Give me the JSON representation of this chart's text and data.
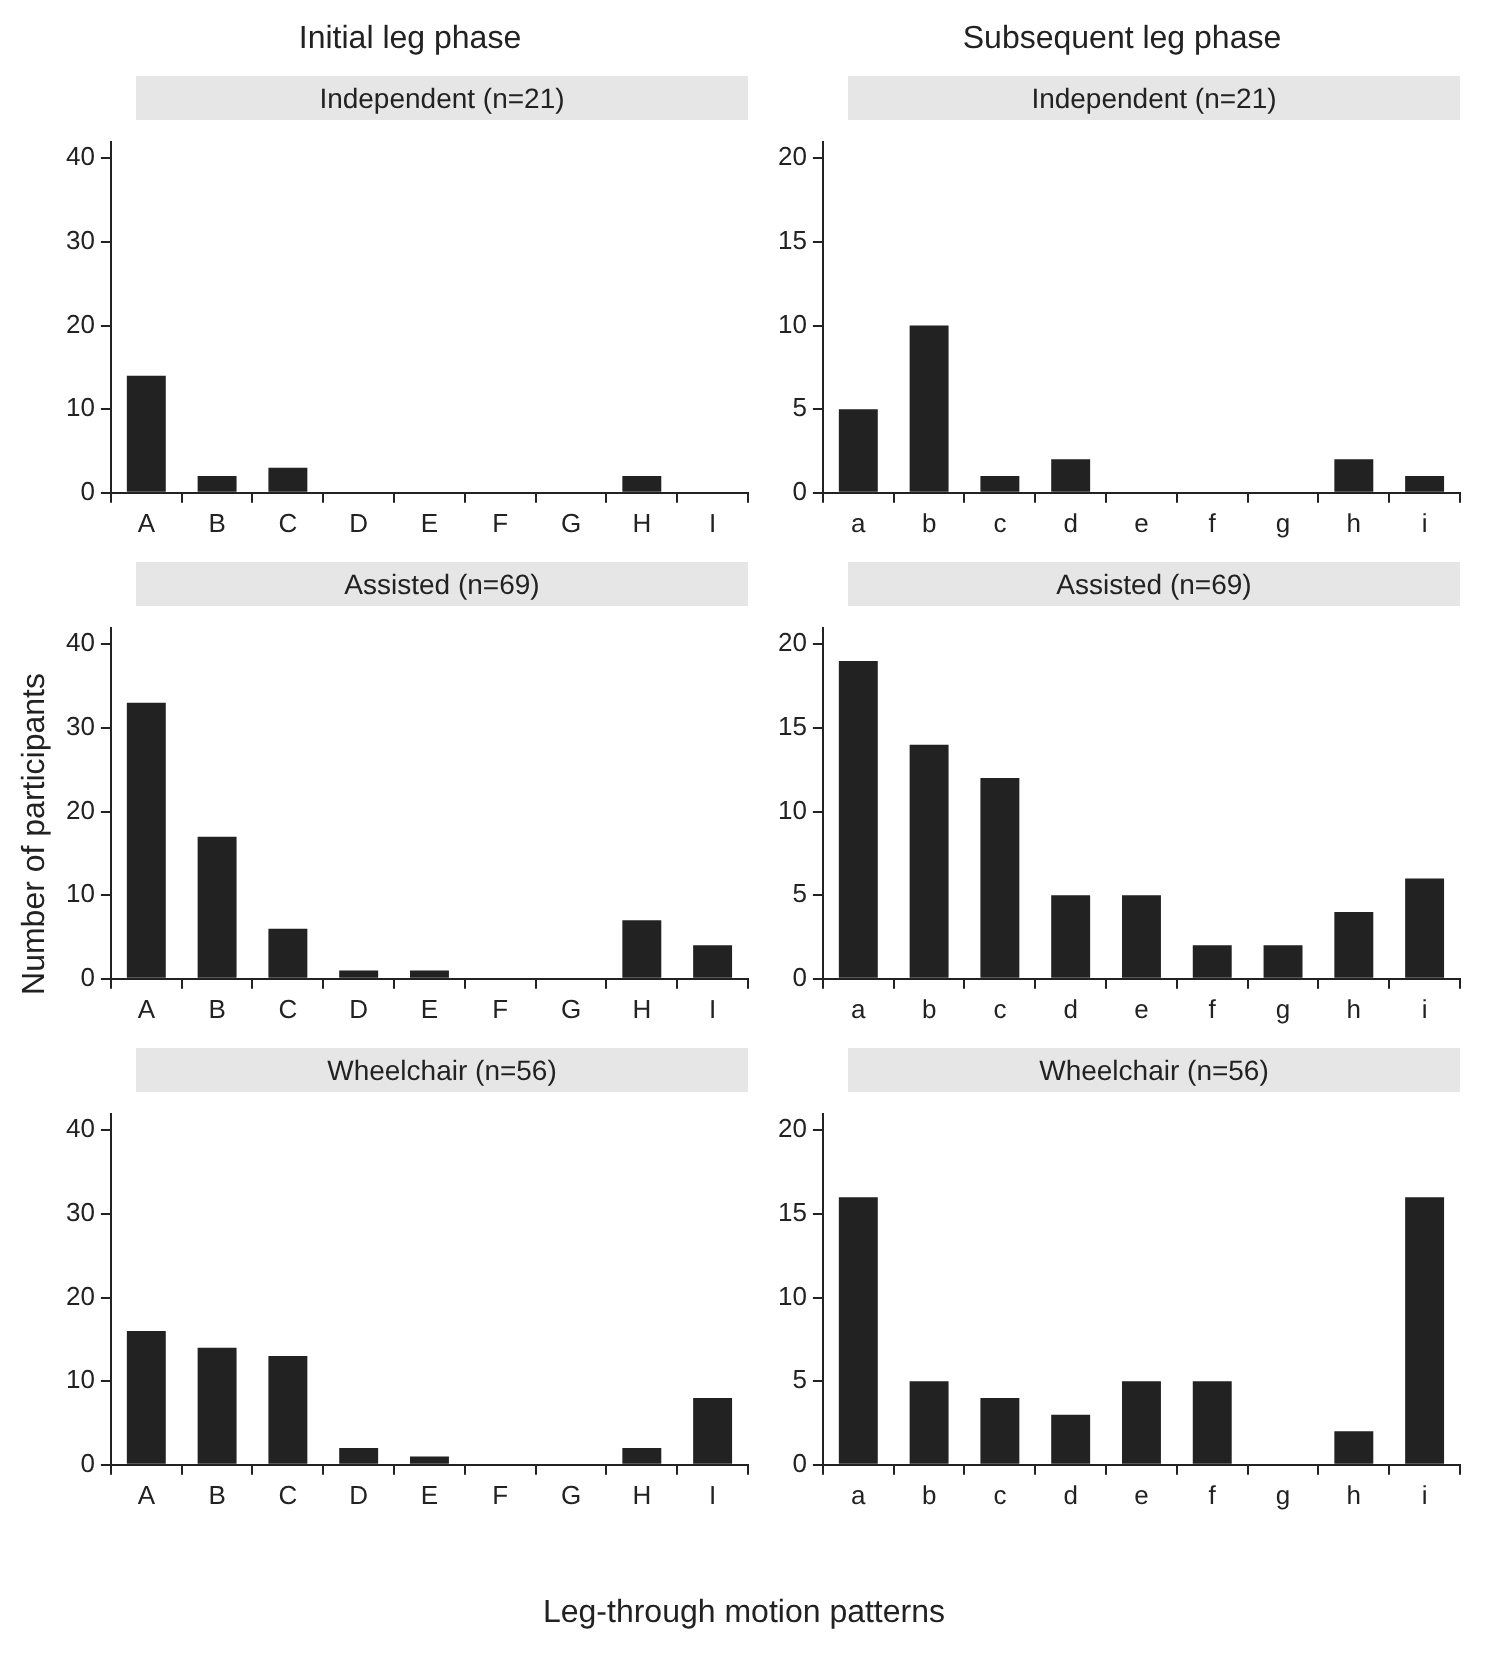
{
  "chart_data": [
    {
      "type": "bar",
      "title": "Initial leg phase",
      "subtitle": "Independent (n=21)",
      "categories": [
        "A",
        "B",
        "C",
        "D",
        "E",
        "F",
        "G",
        "H",
        "I"
      ],
      "values": [
        14,
        2,
        3,
        0,
        0,
        0,
        0,
        2,
        0
      ],
      "color": "#222222",
      "ylim": [
        0,
        42
      ],
      "yticks": [
        0,
        10,
        20,
        30,
        40
      ],
      "grid": false,
      "legend": false
    },
    {
      "type": "bar",
      "title": "Subsequent leg phase",
      "subtitle": "Independent (n=21)",
      "categories": [
        "a",
        "b",
        "c",
        "d",
        "e",
        "f",
        "g",
        "h",
        "i"
      ],
      "values": [
        5,
        10,
        1,
        2,
        0,
        0,
        0,
        2,
        1
      ],
      "color": "#222222",
      "ylim": [
        0,
        21
      ],
      "yticks": [
        0,
        5,
        10,
        15,
        20
      ],
      "grid": false,
      "legend": false
    },
    {
      "type": "bar",
      "subtitle": "Assisted (n=69)",
      "ylabel": "Number of participants",
      "categories": [
        "A",
        "B",
        "C",
        "D",
        "E",
        "F",
        "G",
        "H",
        "I"
      ],
      "values": [
        33,
        17,
        6,
        1,
        1,
        0,
        0,
        7,
        4
      ],
      "color": "#222222",
      "ylim": [
        0,
        42
      ],
      "yticks": [
        0,
        10,
        20,
        30,
        40
      ],
      "grid": false,
      "legend": false
    },
    {
      "type": "bar",
      "subtitle": "Assisted (n=69)",
      "categories": [
        "a",
        "b",
        "c",
        "d",
        "e",
        "f",
        "g",
        "h",
        "i"
      ],
      "values": [
        19,
        14,
        12,
        5,
        5,
        2,
        2,
        4,
        6
      ],
      "color": "#222222",
      "ylim": [
        0,
        21
      ],
      "yticks": [
        0,
        5,
        10,
        15,
        20
      ],
      "grid": false,
      "legend": false
    },
    {
      "type": "bar",
      "subtitle": "Wheelchair (n=56)",
      "xlabel": "Leg-through motion patterns",
      "categories": [
        "A",
        "B",
        "C",
        "D",
        "E",
        "F",
        "G",
        "H",
        "I"
      ],
      "values": [
        16,
        14,
        13,
        2,
        1,
        0,
        0,
        2,
        8
      ],
      "color": "#222222",
      "ylim": [
        0,
        42
      ],
      "yticks": [
        0,
        10,
        20,
        30,
        40
      ],
      "grid": false,
      "legend": false
    },
    {
      "type": "bar",
      "subtitle": "Wheelchair (n=56)",
      "categories": [
        "a",
        "b",
        "c",
        "d",
        "e",
        "f",
        "g",
        "h",
        "i"
      ],
      "values": [
        16,
        5,
        4,
        3,
        5,
        5,
        0,
        2,
        16
      ],
      "color": "#222222",
      "ylim": [
        0,
        21
      ],
      "yticks": [
        0,
        5,
        10,
        15,
        20
      ],
      "grid": false,
      "legend": false
    }
  ]
}
